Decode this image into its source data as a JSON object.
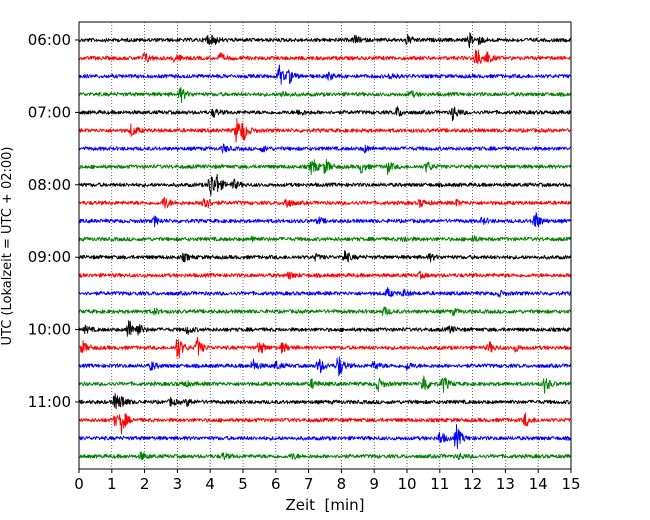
{
  "chart_data": {
    "type": "line",
    "title": "",
    "xlabel": "Zeit  [min]",
    "ylabel": "UTC (Lokalzeit = UTC + 02:00)",
    "xlim": [
      0,
      15
    ],
    "x_ticks": [
      0,
      1,
      2,
      3,
      4,
      5,
      6,
      7,
      8,
      9,
      10,
      11,
      12,
      13,
      14,
      15
    ],
    "y_tick_labels": [
      "06:00",
      "07:00",
      "08:00",
      "09:00",
      "10:00",
      "11:00"
    ],
    "grid": "vertical dotted at each minute",
    "trace_interval_min": 15,
    "colors": [
      "#000000",
      "#ff0000",
      "#0000ff",
      "#008000"
    ],
    "series": [
      {
        "start": "06:00",
        "color": "#000000",
        "events": [
          [
            3.9,
            1.0
          ],
          [
            4.1,
            0.7
          ],
          [
            8.4,
            0.8
          ],
          [
            10.0,
            0.9
          ],
          [
            11.9,
            1.2
          ],
          [
            12.2,
            0.6
          ]
        ]
      },
      {
        "start": "06:15",
        "color": "#ff0000",
        "events": [
          [
            2.0,
            1.1
          ],
          [
            2.9,
            0.9
          ],
          [
            4.3,
            0.8
          ],
          [
            12.1,
            2.4
          ],
          [
            12.4,
            1.2
          ]
        ]
      },
      {
        "start": "06:30",
        "color": "#0000ff",
        "events": [
          [
            6.1,
            2.0
          ],
          [
            6.4,
            1.1
          ],
          [
            7.6,
            0.7
          ],
          [
            9.5,
            0.6
          ]
        ]
      },
      {
        "start": "06:45",
        "color": "#008000",
        "events": [
          [
            3.1,
            1.4
          ],
          [
            6.2,
            0.6
          ],
          [
            10.1,
            0.6
          ]
        ]
      },
      {
        "start": "07:00",
        "color": "#000000",
        "events": [
          [
            4.1,
            0.8
          ],
          [
            6.7,
            0.6
          ],
          [
            9.7,
            1.0
          ],
          [
            11.4,
            1.5
          ]
        ]
      },
      {
        "start": "07:15",
        "color": "#ff0000",
        "events": [
          [
            1.6,
            1.2
          ],
          [
            4.8,
            2.4
          ],
          [
            5.0,
            1.6
          ]
        ]
      },
      {
        "start": "07:30",
        "color": "#0000ff",
        "events": [
          [
            4.4,
            0.7
          ],
          [
            5.6,
            0.5
          ],
          [
            8.7,
            0.6
          ]
        ]
      },
      {
        "start": "07:45",
        "color": "#008000",
        "events": [
          [
            7.1,
            1.8
          ],
          [
            7.5,
            1.4
          ],
          [
            8.6,
            1.1
          ],
          [
            9.4,
            1.2
          ],
          [
            10.6,
            1.0
          ]
        ]
      },
      {
        "start": "08:00",
        "color": "#000000",
        "events": [
          [
            4.0,
            2.8
          ],
          [
            4.2,
            1.5
          ],
          [
            4.7,
            1.0
          ]
        ]
      },
      {
        "start": "08:15",
        "color": "#ff0000",
        "events": [
          [
            2.6,
            1.3
          ],
          [
            3.8,
            2.0
          ],
          [
            6.3,
            1.1
          ],
          [
            10.4,
            0.7
          ],
          [
            11.5,
            0.5
          ]
        ]
      },
      {
        "start": "08:30",
        "color": "#0000ff",
        "events": [
          [
            2.3,
            0.8
          ],
          [
            7.3,
            0.6
          ],
          [
            12.3,
            0.6
          ],
          [
            13.9,
            2.0
          ]
        ]
      },
      {
        "start": "08:45",
        "color": "#008000",
        "events": [
          [
            5.3,
            0.5
          ],
          [
            9.9,
            0.5
          ],
          [
            12.0,
            0.5
          ]
        ]
      },
      {
        "start": "09:00",
        "color": "#000000",
        "events": [
          [
            3.2,
            0.7
          ],
          [
            7.2,
            0.5
          ],
          [
            8.1,
            1.3
          ],
          [
            10.7,
            0.6
          ]
        ]
      },
      {
        "start": "09:15",
        "color": "#ff0000",
        "events": [
          [
            6.4,
            0.6
          ],
          [
            10.4,
            0.5
          ]
        ]
      },
      {
        "start": "09:30",
        "color": "#0000ff",
        "events": [
          [
            9.4,
            0.8
          ],
          [
            9.9,
            0.6
          ],
          [
            12.8,
            0.5
          ]
        ]
      },
      {
        "start": "09:45",
        "color": "#008000",
        "events": [
          [
            2.3,
            0.5
          ],
          [
            9.3,
            0.8
          ],
          [
            11.4,
            0.5
          ]
        ]
      },
      {
        "start": "10:00",
        "color": "#000000",
        "events": [
          [
            0.2,
            0.6
          ],
          [
            1.5,
            2.2
          ],
          [
            1.8,
            1.0
          ],
          [
            3.3,
            0.8
          ],
          [
            11.3,
            0.6
          ]
        ]
      },
      {
        "start": "10:15",
        "color": "#ff0000",
        "events": [
          [
            0.1,
            1.2
          ],
          [
            3.0,
            2.5
          ],
          [
            3.6,
            1.9
          ],
          [
            5.5,
            1.3
          ],
          [
            6.2,
            1.0
          ],
          [
            12.5,
            1.0
          ],
          [
            13.3,
            0.6
          ]
        ]
      },
      {
        "start": "10:30",
        "color": "#0000ff",
        "events": [
          [
            2.2,
            0.8
          ],
          [
            5.3,
            1.2
          ],
          [
            6.0,
            0.8
          ],
          [
            7.3,
            1.7
          ],
          [
            7.9,
            2.3
          ],
          [
            9.0,
            0.9
          ],
          [
            10.0,
            0.7
          ]
        ]
      },
      {
        "start": "10:45",
        "color": "#008000",
        "events": [
          [
            3.2,
            0.6
          ],
          [
            7.1,
            0.8
          ],
          [
            9.1,
            1.3
          ],
          [
            10.5,
            2.1
          ],
          [
            11.1,
            1.6
          ],
          [
            14.2,
            1.5
          ]
        ]
      },
      {
        "start": "11:00",
        "color": "#000000",
        "events": [
          [
            1.1,
            1.6
          ],
          [
            1.3,
            0.9
          ],
          [
            2.8,
            0.7
          ],
          [
            3.3,
            0.6
          ]
        ]
      },
      {
        "start": "11:15",
        "color": "#ff0000",
        "events": [
          [
            1.3,
            2.2
          ],
          [
            1.1,
            1.0
          ],
          [
            13.6,
            1.3
          ]
        ]
      },
      {
        "start": "11:30",
        "color": "#0000ff",
        "events": [
          [
            11.0,
            1.3
          ],
          [
            11.5,
            2.4
          ]
        ]
      },
      {
        "start": "11:45",
        "color": "#008000",
        "events": [
          [
            1.9,
            0.7
          ],
          [
            4.4,
            0.6
          ],
          [
            6.5,
            0.5
          ],
          [
            11.6,
            0.5
          ]
        ]
      }
    ]
  }
}
